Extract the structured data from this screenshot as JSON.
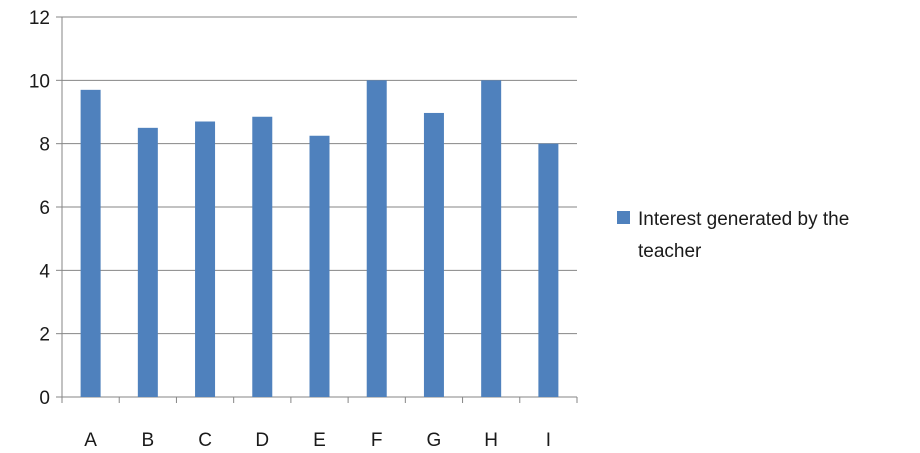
{
  "chart_data": {
    "type": "bar",
    "categories": [
      "A",
      "B",
      "C",
      "D",
      "E",
      "F",
      "G",
      "H",
      "I"
    ],
    "series": [
      {
        "name": "Interest generated by the teacher",
        "values": [
          9.7,
          8.5,
          8.7,
          8.85,
          8.25,
          10.0,
          8.97,
          10.0,
          8.0
        ],
        "color": "#4f81bd"
      }
    ],
    "title": "",
    "xlabel": "",
    "ylabel": "",
    "ylim": [
      0,
      12
    ],
    "yticks": [
      "0",
      "2",
      "4",
      "6",
      "8",
      "10",
      "12"
    ],
    "grid": true,
    "legend_position": "right",
    "legend_lines": [
      "Interest generated by the",
      "teacher"
    ]
  }
}
